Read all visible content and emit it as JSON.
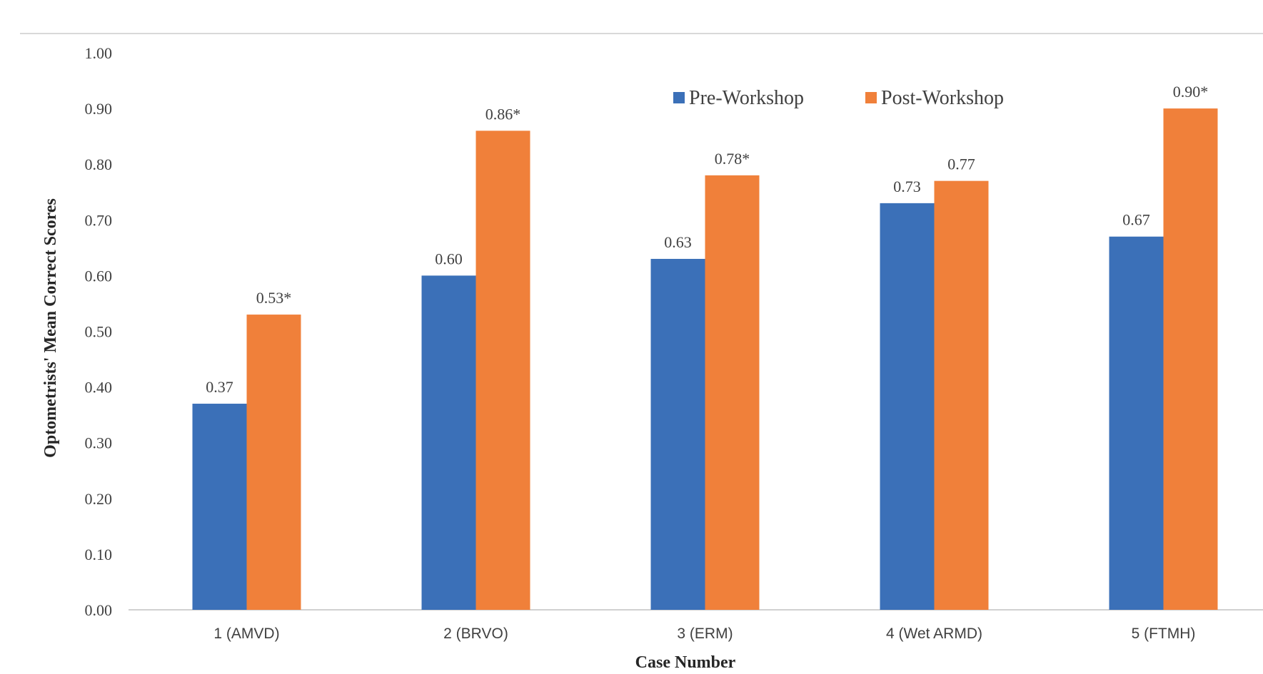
{
  "chart_data": {
    "type": "bar",
    "title": "",
    "xlabel": "Case Number",
    "ylabel": "Optometrists' Mean Correct Scores",
    "ylim": [
      0,
      1
    ],
    "yticks": [
      "0.00",
      "0.10",
      "0.20",
      "0.30",
      "0.40",
      "0.50",
      "0.60",
      "0.70",
      "0.80",
      "0.90",
      "1.00"
    ],
    "grid": false,
    "legend_position": "top-right",
    "categories": [
      "1 (AMVD)",
      "2 (BRVO)",
      "3 (ERM)",
      "4 (Wet ARMD)",
      "5 (FTMH)"
    ],
    "series": [
      {
        "name": "Pre-Workshop",
        "color": "#3b70b8",
        "values": [
          0.37,
          0.6,
          0.63,
          0.73,
          0.67
        ],
        "labels": [
          "0.37",
          "0.60",
          "0.63",
          "0.73",
          "0.67"
        ]
      },
      {
        "name": "Post-Workshop",
        "color": "#f0803a",
        "values": [
          0.53,
          0.86,
          0.78,
          0.77,
          0.9
        ],
        "labels": [
          "0.53*",
          "0.86*",
          "0.78*",
          "0.77",
          "0.90*"
        ]
      }
    ]
  }
}
